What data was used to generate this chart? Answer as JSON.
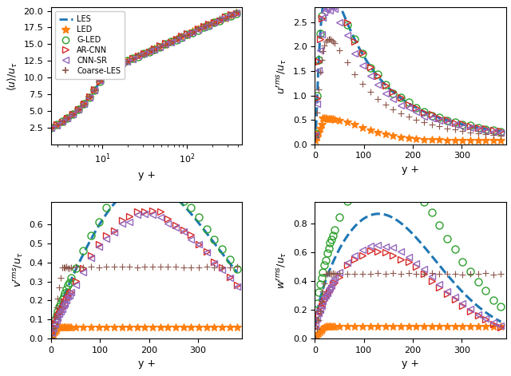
{
  "colors": {
    "LES": "#1f77b4",
    "LED": "#ff7f0e",
    "G-LED": "#2ca02c",
    "AR-CNN": "#d62728",
    "CNN-SR": "#9467bd",
    "Coarse-LES": "#8c564b"
  },
  "legend_labels": [
    "LES",
    "LED",
    "G-LED",
    "AR-CNN",
    "CNN-SR",
    "Coarse-LES"
  ]
}
